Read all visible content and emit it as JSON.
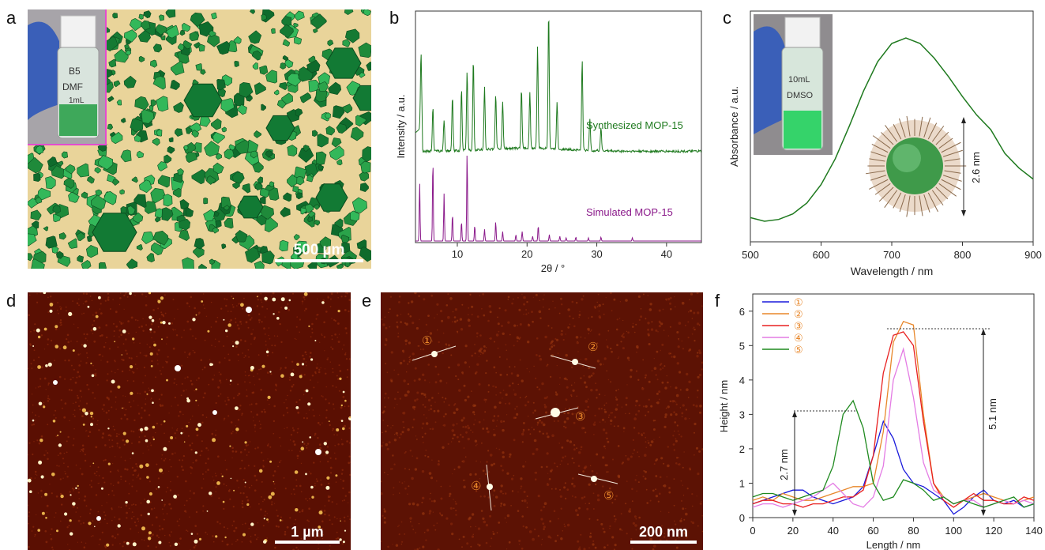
{
  "panels": {
    "a": {
      "letter": "a",
      "scale_bar": "500 µm",
      "vial_label_lines": [
        "B5",
        "DMF",
        "1mL"
      ]
    },
    "b": {
      "letter": "b",
      "x_label": "2θ / °",
      "y_label": "Intensity / a.u.",
      "ticks": [
        "10",
        "20",
        "30",
        "40"
      ],
      "series_labels": [
        "Synthesized MOP-15",
        "Simulated MOP-15"
      ],
      "colors": {
        "synthesized": "#1f7a1f",
        "simulated": "#8b1a8b"
      }
    },
    "c": {
      "letter": "c",
      "x_label": "Wavelength / nm",
      "y_label": "Absorbance / a.u.",
      "ticks": [
        "500",
        "600",
        "700",
        "800",
        "900"
      ],
      "size_label": "2.6 nm",
      "vial_label_lines": [
        "10mL",
        "DMSO"
      ],
      "color": "#1f7a1f"
    },
    "d": {
      "letter": "d",
      "scale_bar": "1 µm"
    },
    "e": {
      "letter": "e",
      "scale_bar": "200 nm",
      "markers": [
        "①",
        "②",
        "③",
        "④",
        "⑤"
      ]
    },
    "f": {
      "letter": "f",
      "x_label": "Length / nm",
      "y_label": "Height / nm",
      "x_ticks": [
        "0",
        "20",
        "40",
        "60",
        "80",
        "100",
        "120",
        "140"
      ],
      "y_ticks": [
        "0",
        "1",
        "2",
        "3",
        "4",
        "5",
        "6"
      ],
      "legend": [
        "①",
        "②",
        "③",
        "④",
        "⑤"
      ],
      "annotation_low": "2.7 nm",
      "annotation_high": "5.1 nm"
    }
  },
  "chart_data": [
    {
      "type": "line",
      "panel": "b",
      "xlabel": "2θ / °",
      "ylabel": "Intensity / a.u.",
      "xlim": [
        4,
        45
      ],
      "series": [
        {
          "name": "Synthesized MOP-15",
          "peaks_x": [
            4.8,
            6.5,
            8.1,
            9.3,
            10.6,
            11.4,
            12.3,
            13.9,
            15.5,
            16.5,
            19.2,
            20.4,
            21.5,
            23.1,
            24.3,
            27.9,
            29.0,
            30.6
          ]
        },
        {
          "name": "Simulated MOP-15",
          "peaks_x": [
            4.6,
            6.5,
            8.1,
            9.3,
            10.6,
            11.4,
            12.5,
            13.9,
            15.5,
            16.5,
            18.4,
            19.3,
            20.8,
            21.6,
            23.2,
            24.7,
            25.6,
            27.0,
            28.8,
            30.6,
            35.1
          ]
        }
      ]
    },
    {
      "type": "line",
      "panel": "c",
      "xlabel": "Wavelength / nm",
      "ylabel": "Absorbance / a.u.",
      "xlim": [
        500,
        900
      ],
      "series": [
        {
          "x": [
            500,
            520,
            540,
            560,
            580,
            600,
            620,
            640,
            660,
            680,
            700,
            720,
            740,
            760,
            780,
            800,
            820,
            840,
            860,
            880,
            900
          ],
          "values": [
            0.02,
            0.0,
            0.01,
            0.04,
            0.1,
            0.2,
            0.34,
            0.52,
            0.71,
            0.87,
            0.97,
            1.0,
            0.97,
            0.89,
            0.79,
            0.68,
            0.58,
            0.5,
            0.37,
            0.29,
            0.23
          ]
        }
      ]
    },
    {
      "type": "line",
      "panel": "f",
      "xlabel": "Length / nm",
      "ylabel": "Height / nm",
      "xlim": [
        0,
        140
      ],
      "ylim": [
        0,
        6.5
      ],
      "x": [
        0,
        5,
        10,
        15,
        20,
        25,
        30,
        35,
        40,
        45,
        50,
        55,
        60,
        65,
        70,
        75,
        80,
        85,
        90,
        95,
        100,
        105,
        110,
        115,
        120,
        125,
        130,
        135,
        140
      ],
      "series": [
        {
          "name": "①",
          "color": "#1a1adb",
          "values": [
            0.4,
            0.5,
            0.6,
            0.7,
            0.8,
            0.8,
            0.6,
            0.5,
            0.4,
            0.5,
            0.6,
            0.9,
            1.8,
            2.8,
            2.3,
            1.4,
            1.0,
            0.9,
            0.7,
            0.5,
            0.1,
            0.3,
            0.6,
            0.8,
            0.5,
            0.4,
            0.5,
            0.3,
            0.4
          ]
        },
        {
          "name": "②",
          "color": "#e8872a",
          "values": [
            0.5,
            0.6,
            0.5,
            0.7,
            0.6,
            0.5,
            0.5,
            0.6,
            0.7,
            0.8,
            0.9,
            0.9,
            1.0,
            2.5,
            5.1,
            5.7,
            5.6,
            3.0,
            1.0,
            0.6,
            0.4,
            0.5,
            0.6,
            0.7,
            0.6,
            0.5,
            0.4,
            0.5,
            0.6
          ]
        },
        {
          "name": "③",
          "color": "#e82020",
          "values": [
            0.4,
            0.5,
            0.5,
            0.4,
            0.4,
            0.3,
            0.4,
            0.4,
            0.5,
            0.6,
            0.6,
            0.8,
            1.8,
            4.2,
            5.3,
            5.4,
            5.0,
            2.8,
            1.0,
            0.5,
            0.3,
            0.5,
            0.7,
            0.5,
            0.5,
            0.4,
            0.4,
            0.6,
            0.5
          ]
        },
        {
          "name": "④",
          "color": "#e47ce4",
          "values": [
            0.3,
            0.4,
            0.4,
            0.3,
            0.4,
            0.5,
            0.6,
            0.8,
            1.0,
            0.7,
            0.4,
            0.3,
            0.6,
            1.5,
            4.0,
            4.9,
            3.5,
            1.6,
            0.8,
            0.6,
            0.4,
            0.5,
            0.5,
            0.3,
            0.4,
            0.5,
            0.4,
            0.5,
            0.4
          ]
        },
        {
          "name": "⑤",
          "color": "#1f8a1f",
          "values": [
            0.6,
            0.7,
            0.7,
            0.6,
            0.5,
            0.6,
            0.7,
            0.8,
            1.5,
            3.0,
            3.4,
            2.6,
            1.0,
            0.5,
            0.6,
            1.1,
            1.0,
            0.8,
            0.5,
            0.6,
            0.4,
            0.5,
            0.4,
            0.3,
            0.4,
            0.5,
            0.6,
            0.3,
            0.4
          ]
        }
      ]
    }
  ]
}
